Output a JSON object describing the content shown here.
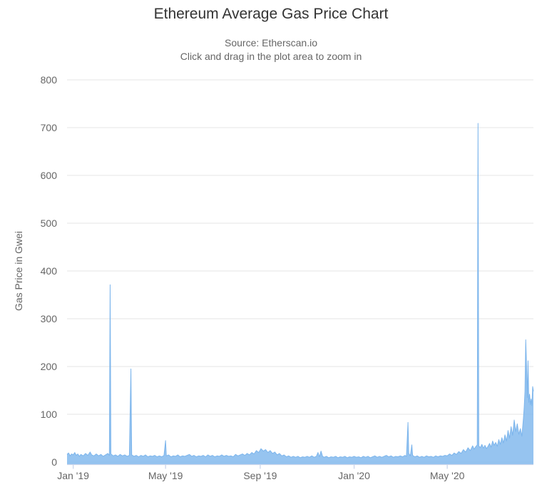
{
  "chart_data": {
    "type": "area",
    "title": "Ethereum Average Gas Price Chart",
    "subtitle": [
      "Source: Etherscan.io",
      "Click and drag in the plot area to zoom in"
    ],
    "ylabel": "Gas Price in Gwei",
    "ylim": [
      0,
      800
    ],
    "yticks": [
      0,
      100,
      200,
      300,
      400,
      500,
      600,
      700,
      800
    ],
    "grid": "horizontal",
    "legend": "none",
    "x_unit": "days since 2019-01-01",
    "x_range_days": [
      -8,
      598
    ],
    "xticks": [
      {
        "day": 0,
        "label": "Jan '19"
      },
      {
        "day": 120,
        "label": "May '19"
      },
      {
        "day": 243,
        "label": "Sep '19"
      },
      {
        "day": 365,
        "label": "Jan '20"
      },
      {
        "day": 486,
        "label": "May '20"
      }
    ],
    "notable_spikes_gwei": [
      {
        "approx_date": "Feb 2019",
        "day": 48,
        "value": 371
      },
      {
        "approx_date": "Mar 2019",
        "day": 75,
        "value": 195
      },
      {
        "approx_date": "May 2019",
        "day": 120,
        "value": 45
      },
      {
        "approx_date": "Mar 2020",
        "day": 435,
        "value": 83
      },
      {
        "approx_date": "Jun 2020",
        "day": 526,
        "value": 709
      },
      {
        "approx_date": "Aug 2020",
        "day": 588,
        "value": 256
      }
    ],
    "points": [
      [
        -8,
        16
      ],
      [
        -6,
        19
      ],
      [
        -4,
        13
      ],
      [
        -2,
        17
      ],
      [
        0,
        15
      ],
      [
        2,
        20
      ],
      [
        4,
        14
      ],
      [
        6,
        17
      ],
      [
        8,
        12
      ],
      [
        10,
        16
      ],
      [
        13,
        13
      ],
      [
        16,
        18
      ],
      [
        19,
        14
      ],
      [
        22,
        21
      ],
      [
        24,
        15
      ],
      [
        27,
        13
      ],
      [
        30,
        17
      ],
      [
        33,
        13
      ],
      [
        36,
        16
      ],
      [
        39,
        12
      ],
      [
        42,
        15
      ],
      [
        45,
        18
      ],
      [
        47,
        14
      ],
      [
        48,
        371
      ],
      [
        49,
        17
      ],
      [
        52,
        13
      ],
      [
        55,
        15
      ],
      [
        58,
        12
      ],
      [
        61,
        16
      ],
      [
        64,
        13
      ],
      [
        67,
        15
      ],
      [
        70,
        12
      ],
      [
        73,
        14
      ],
      [
        75,
        195
      ],
      [
        76,
        15
      ],
      [
        79,
        12
      ],
      [
        82,
        14
      ],
      [
        85,
        11
      ],
      [
        88,
        14
      ],
      [
        91,
        12
      ],
      [
        94,
        15
      ],
      [
        97,
        11
      ],
      [
        100,
        13
      ],
      [
        103,
        12
      ],
      [
        106,
        14
      ],
      [
        109,
        11
      ],
      [
        112,
        13
      ],
      [
        115,
        11
      ],
      [
        118,
        14
      ],
      [
        120,
        45
      ],
      [
        121,
        13
      ],
      [
        124,
        15
      ],
      [
        127,
        11
      ],
      [
        130,
        13
      ],
      [
        133,
        12
      ],
      [
        136,
        15
      ],
      [
        139,
        11
      ],
      [
        142,
        13
      ],
      [
        145,
        12
      ],
      [
        148,
        14
      ],
      [
        151,
        16
      ],
      [
        154,
        12
      ],
      [
        157,
        14
      ],
      [
        160,
        11
      ],
      [
        163,
        13
      ],
      [
        166,
        12
      ],
      [
        169,
        14
      ],
      [
        172,
        11
      ],
      [
        175,
        15
      ],
      [
        178,
        12
      ],
      [
        181,
        14
      ],
      [
        184,
        11
      ],
      [
        187,
        13
      ],
      [
        190,
        12
      ],
      [
        193,
        15
      ],
      [
        196,
        12
      ],
      [
        199,
        14
      ],
      [
        202,
        12
      ],
      [
        205,
        13
      ],
      [
        208,
        11
      ],
      [
        211,
        16
      ],
      [
        214,
        13
      ],
      [
        217,
        15
      ],
      [
        220,
        17
      ],
      [
        223,
        14
      ],
      [
        226,
        18
      ],
      [
        229,
        15
      ],
      [
        232,
        20
      ],
      [
        235,
        17
      ],
      [
        238,
        24
      ],
      [
        241,
        20
      ],
      [
        244,
        28
      ],
      [
        247,
        23
      ],
      [
        250,
        26
      ],
      [
        253,
        20
      ],
      [
        256,
        24
      ],
      [
        259,
        18
      ],
      [
        262,
        21
      ],
      [
        265,
        15
      ],
      [
        268,
        18
      ],
      [
        271,
        13
      ],
      [
        274,
        15
      ],
      [
        277,
        11
      ],
      [
        280,
        13
      ],
      [
        283,
        10
      ],
      [
        286,
        12
      ],
      [
        289,
        10
      ],
      [
        292,
        12
      ],
      [
        295,
        9
      ],
      [
        298,
        11
      ],
      [
        301,
        10
      ],
      [
        304,
        12
      ],
      [
        307,
        10
      ],
      [
        310,
        13
      ],
      [
        313,
        10
      ],
      [
        316,
        12
      ],
      [
        318,
        20
      ],
      [
        320,
        11
      ],
      [
        322,
        23
      ],
      [
        324,
        12
      ],
      [
        326,
        10
      ],
      [
        329,
        12
      ],
      [
        332,
        9
      ],
      [
        335,
        11
      ],
      [
        338,
        10
      ],
      [
        341,
        12
      ],
      [
        344,
        9
      ],
      [
        347,
        11
      ],
      [
        350,
        10
      ],
      [
        353,
        12
      ],
      [
        356,
        9
      ],
      [
        359,
        11
      ],
      [
        362,
        10
      ],
      [
        365,
        12
      ],
      [
        368,
        10
      ],
      [
        371,
        11
      ],
      [
        374,
        9
      ],
      [
        377,
        12
      ],
      [
        380,
        10
      ],
      [
        383,
        12
      ],
      [
        386,
        9
      ],
      [
        389,
        11
      ],
      [
        392,
        13
      ],
      [
        395,
        10
      ],
      [
        398,
        12
      ],
      [
        401,
        10
      ],
      [
        404,
        12
      ],
      [
        407,
        14
      ],
      [
        410,
        11
      ],
      [
        413,
        13
      ],
      [
        416,
        10
      ],
      [
        419,
        12
      ],
      [
        422,
        11
      ],
      [
        425,
        13
      ],
      [
        428,
        11
      ],
      [
        431,
        14
      ],
      [
        433,
        12
      ],
      [
        435,
        83
      ],
      [
        436,
        18
      ],
      [
        438,
        13
      ],
      [
        440,
        36
      ],
      [
        441,
        14
      ],
      [
        444,
        11
      ],
      [
        447,
        13
      ],
      [
        450,
        10
      ],
      [
        453,
        12
      ],
      [
        456,
        10
      ],
      [
        459,
        13
      ],
      [
        462,
        11
      ],
      [
        465,
        12
      ],
      [
        468,
        10
      ],
      [
        471,
        13
      ],
      [
        474,
        11
      ],
      [
        477,
        13
      ],
      [
        480,
        12
      ],
      [
        483,
        14
      ],
      [
        486,
        13
      ],
      [
        489,
        17
      ],
      [
        492,
        14
      ],
      [
        495,
        19
      ],
      [
        498,
        16
      ],
      [
        501,
        22
      ],
      [
        504,
        18
      ],
      [
        507,
        26
      ],
      [
        510,
        21
      ],
      [
        513,
        30
      ],
      [
        516,
        24
      ],
      [
        519,
        34
      ],
      [
        521,
        27
      ],
      [
        523,
        32
      ],
      [
        525,
        36
      ],
      [
        526,
        709
      ],
      [
        527,
        34
      ],
      [
        529,
        30
      ],
      [
        531,
        37
      ],
      [
        533,
        29
      ],
      [
        535,
        35
      ],
      [
        537,
        28
      ],
      [
        539,
        33
      ],
      [
        541,
        39
      ],
      [
        543,
        31
      ],
      [
        545,
        44
      ],
      [
        547,
        35
      ],
      [
        549,
        41
      ],
      [
        551,
        33
      ],
      [
        553,
        47
      ],
      [
        555,
        37
      ],
      [
        557,
        51
      ],
      [
        559,
        40
      ],
      [
        561,
        57
      ],
      [
        563,
        44
      ],
      [
        565,
        66
      ],
      [
        567,
        50
      ],
      [
        569,
        74
      ],
      [
        571,
        56
      ],
      [
        573,
        88
      ],
      [
        575,
        64
      ],
      [
        577,
        80
      ],
      [
        579,
        58
      ],
      [
        581,
        70
      ],
      [
        583,
        54
      ],
      [
        585,
        92
      ],
      [
        586,
        115
      ],
      [
        587,
        148
      ],
      [
        588,
        256
      ],
      [
        589,
        205
      ],
      [
        590,
        135
      ],
      [
        591,
        212
      ],
      [
        592,
        125
      ],
      [
        593,
        142
      ],
      [
        594,
        120
      ],
      [
        595,
        132
      ],
      [
        596,
        118
      ],
      [
        597,
        158
      ],
      [
        598,
        148
      ]
    ]
  },
  "colors": {
    "series_line": "#7cb5ec",
    "series_fill": "rgba(124,181,236,0.8)",
    "grid_line": "#e6e6e6",
    "axis_line": "#ccd6eb",
    "title_text": "#333333",
    "subtitle_text": "#666666",
    "axis_label_text": "#666666"
  }
}
